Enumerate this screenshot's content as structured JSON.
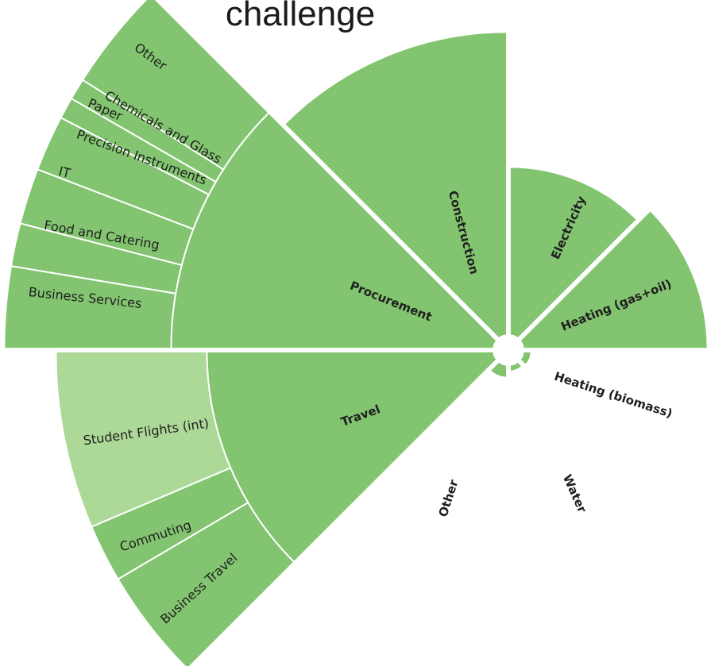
{
  "chart_data": {
    "type": "sunburst",
    "title": "challenge",
    "colors": {
      "primary": "#82c46f",
      "light": "#acd898",
      "separator": "#ffffff"
    },
    "categories": [
      {
        "name": "Construction",
        "children": []
      },
      {
        "name": "Procurement",
        "children": [
          {
            "name": "Business Services"
          },
          {
            "name": "Food and Catering"
          },
          {
            "name": "IT"
          },
          {
            "name": "Precision Instruments"
          },
          {
            "name": "Paper"
          },
          {
            "name": "Chemicals and Glass"
          },
          {
            "name": "Other"
          }
        ]
      },
      {
        "name": "Travel",
        "children": [
          {
            "name": "Student Flights (int)",
            "highlight": true
          },
          {
            "name": "Commuting"
          },
          {
            "name": "Business Travel"
          }
        ]
      },
      {
        "name": "Other",
        "children": []
      },
      {
        "name": "Water",
        "children": []
      },
      {
        "name": "Heating (biomass)",
        "children": []
      },
      {
        "name": "Heating (gas+oil)",
        "children": []
      },
      {
        "name": "Electricity",
        "children": []
      }
    ]
  }
}
